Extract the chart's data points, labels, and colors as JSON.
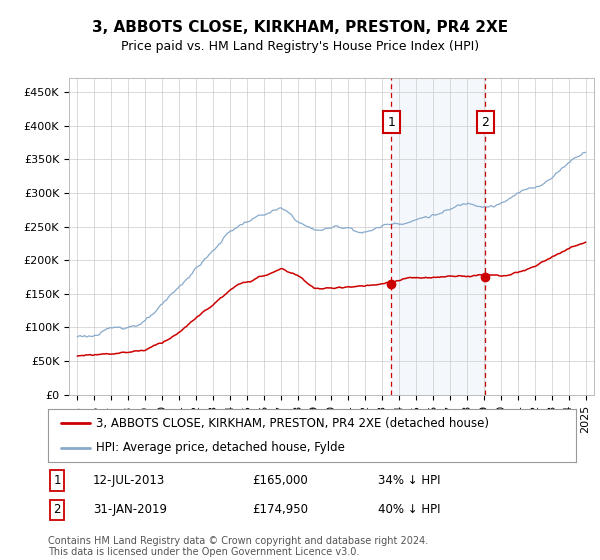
{
  "title": "3, ABBOTS CLOSE, KIRKHAM, PRESTON, PR4 2XE",
  "subtitle": "Price paid vs. HM Land Registry's House Price Index (HPI)",
  "ylim": [
    0,
    470000
  ],
  "yticks": [
    0,
    50000,
    100000,
    150000,
    200000,
    250000,
    300000,
    350000,
    400000,
    450000
  ],
  "ytick_labels": [
    "£0",
    "£50K",
    "£100K",
    "£150K",
    "£200K",
    "£250K",
    "£300K",
    "£350K",
    "£400K",
    "£450K"
  ],
  "xlim_start": 1994.5,
  "xlim_end": 2025.5,
  "legend_label_red": "3, ABBOTS CLOSE, KIRKHAM, PRESTON, PR4 2XE (detached house)",
  "legend_label_blue": "HPI: Average price, detached house, Fylde",
  "transaction1_date": "12-JUL-2013",
  "transaction1_x": 2013.53,
  "transaction1_price": 165000,
  "transaction1_label": "£165,000",
  "transaction1_pct": "34% ↓ HPI",
  "transaction2_date": "31-JAN-2019",
  "transaction2_x": 2019.08,
  "transaction2_price": 174950,
  "transaction2_label": "£174,950",
  "transaction2_pct": "40% ↓ HPI",
  "red_color": "#cc0000",
  "blue_color": "#88aacc",
  "marker_box_color": "#cc0000",
  "vline_color": "#cc0000",
  "background_color": "#ffffff",
  "grid_color": "#cccccc",
  "footer": "Contains HM Land Registry data © Crown copyright and database right 2024.\nThis data is licensed under the Open Government Licence v3.0.",
  "title_fontsize": 11,
  "subtitle_fontsize": 9,
  "axis_fontsize": 8,
  "legend_fontsize": 8.5,
  "footer_fontsize": 7,
  "hpi_key_years": [
    1995,
    1996,
    1997,
    1998,
    1999,
    2000,
    2001,
    2002,
    2003,
    2004,
    2005,
    2006,
    2007,
    2008,
    2009,
    2010,
    2011,
    2012,
    2013,
    2014,
    2015,
    2016,
    2017,
    2018,
    2019,
    2020,
    2021,
    2022,
    2023,
    2024,
    2025
  ],
  "hpi_key_values": [
    87000,
    90000,
    96000,
    103000,
    112000,
    130000,
    155000,
    185000,
    210000,
    240000,
    255000,
    265000,
    272000,
    252000,
    238000,
    242000,
    244000,
    238000,
    248000,
    255000,
    262000,
    270000,
    276000,
    285000,
    288000,
    292000,
    305000,
    315000,
    330000,
    355000,
    375000
  ],
  "red_key_years": [
    1995,
    1996,
    1997,
    1998,
    1999,
    2000,
    2001,
    2002,
    2003,
    2004,
    2005,
    2006,
    2007,
    2008,
    2009,
    2010,
    2011,
    2012,
    2013,
    2013.6,
    2014,
    2015,
    2016,
    2017,
    2018,
    2019.08,
    2020,
    2021,
    2022,
    2023,
    2024,
    2025
  ],
  "red_key_values": [
    58000,
    60000,
    63000,
    66000,
    70000,
    82000,
    98000,
    118000,
    138000,
    158000,
    170000,
    178000,
    188000,
    178000,
    160000,
    158000,
    162000,
    163000,
    163000,
    165000,
    168000,
    170000,
    168000,
    170000,
    172000,
    174950,
    174000,
    178000,
    185000,
    200000,
    210000,
    220000
  ]
}
